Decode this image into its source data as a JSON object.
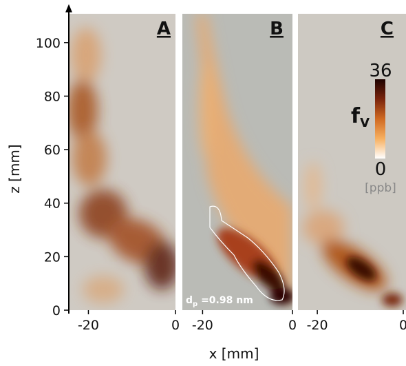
{
  "chart_data": {
    "type": "image",
    "xlabel": "x [mm]",
    "ylabel": "z [mm]",
    "ylim": [
      0,
      110
    ],
    "yticks": [
      0,
      20,
      40,
      60,
      80,
      100
    ],
    "panels": [
      {
        "label": "A",
        "xlim": [
          -24.5,
          0
        ],
        "xticks": [
          -20,
          0
        ]
      },
      {
        "label": "B",
        "xlim": [
          -24.5,
          0
        ],
        "xticks": [
          -20,
          0
        ]
      },
      {
        "label": "C",
        "xlim": [
          -24.5,
          0
        ],
        "xticks": [
          -20,
          0
        ]
      }
    ],
    "annotation": {
      "symbol": "d",
      "sub": "p",
      "text": " =0.98 nm"
    },
    "colorbar": {
      "symbol": "f",
      "sub": "V",
      "clim": [
        0,
        36
      ],
      "ticks": [
        0,
        36
      ],
      "unit": "[ppb]",
      "colors": [
        "#ffffff",
        "#f7b060",
        "#d06a22",
        "#7a240c",
        "#1e0200"
      ]
    }
  }
}
